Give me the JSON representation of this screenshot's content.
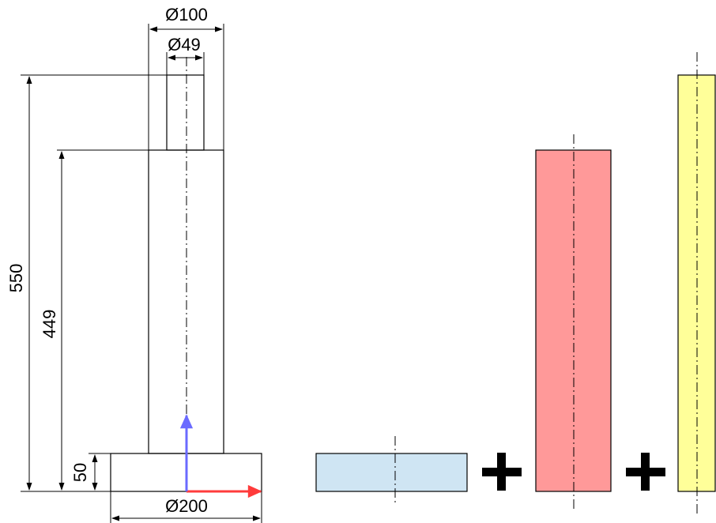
{
  "dimensions": {
    "top_diameter": "Ø100",
    "neck_diameter": "Ø49",
    "base_diameter": "Ø200",
    "total_height": "550",
    "column_height": "449",
    "base_height": "50"
  },
  "operators": {
    "plus_1": "+",
    "plus_2": "+"
  },
  "colors": {
    "outline": "#000000",
    "base_part_fill": "#cfe5f3",
    "column_part_fill": "#ff9999",
    "shaft_part_fill": "#ffff99",
    "axis_x": "#ff3b3b",
    "axis_y": "#6a6aff"
  },
  "icons": {
    "axis_x": "x-axis-arrow-icon",
    "axis_y": "y-axis-arrow-icon",
    "plus": "plus-icon"
  }
}
